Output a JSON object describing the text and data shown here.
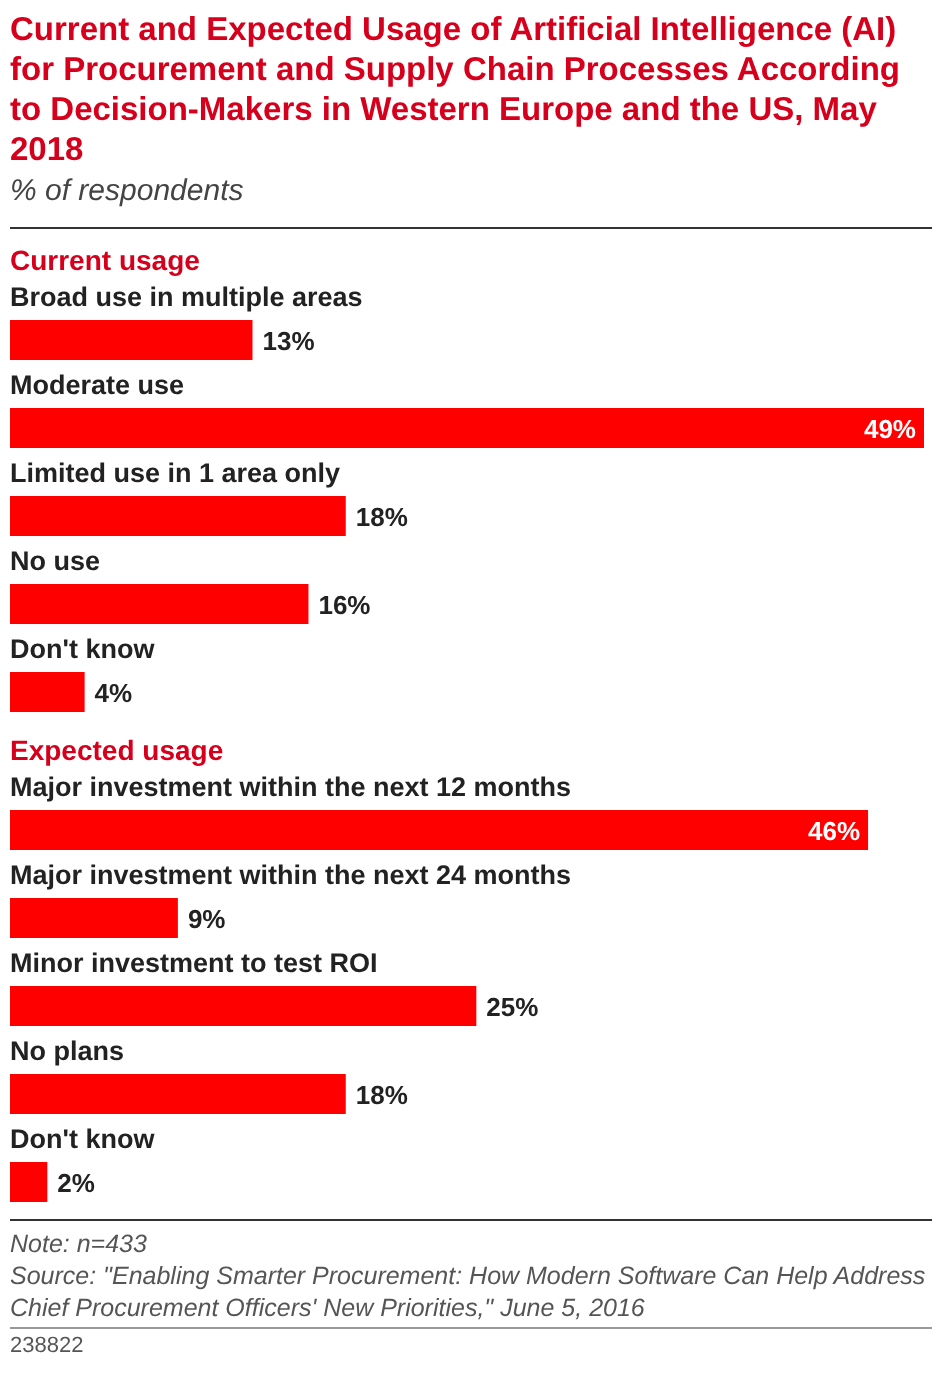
{
  "chart_data": [
    {
      "type": "other",
      "title": "Current and Expected Usage of Artificial Intelligence (AI) for Procurement and Supply Chain Processes According to Decision-Makers in Western Europe and the US, May 2018",
      "subtitle": "% of respondents"
    },
    {
      "type": "bar",
      "orientation": "horizontal",
      "title": "Current usage",
      "categories": [
        "Broad use in multiple areas",
        "Moderate use",
        "Limited use in 1 area only",
        "No use",
        "Don't know"
      ],
      "values": [
        13,
        49,
        18,
        16,
        4
      ],
      "value_labels": [
        "13%",
        "49%",
        "18%",
        "16%",
        "4%"
      ],
      "color": "#ff0000"
    },
    {
      "type": "bar",
      "orientation": "horizontal",
      "title": "Expected usage",
      "categories": [
        "Major investment within the next 12 months",
        "Major investment within the next 24 months",
        "Minor investment to test ROI",
        "No plans",
        "Don't know"
      ],
      "values": [
        46,
        9,
        25,
        18,
        2
      ],
      "value_labels": [
        "46%",
        "9%",
        "25%",
        "18%",
        "2%"
      ],
      "color": "#ff0000",
      "annotations": [
        "Note: n=433",
        "Source: \"Enabling Smarter Procurement: How Modern Software Can Help Address Chief Procurement Officers' New Priorities,\" June 5, 2016",
        "238822"
      ]
    }
  ]
}
